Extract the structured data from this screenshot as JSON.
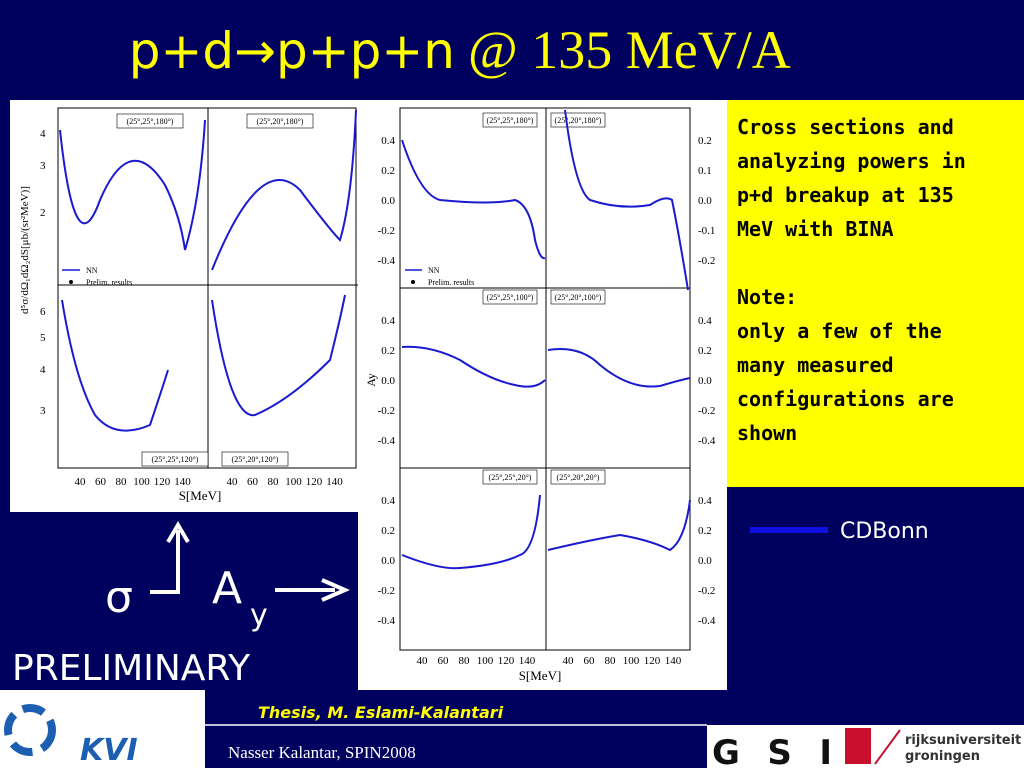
{
  "title": {
    "main": "p+d→p+p+n",
    "sub": "@ 135 MeV/A"
  },
  "left_plot": {
    "y_label": "d⁵σ/dΩ₁dΩ₂dS[μb/(sr²MeV)]",
    "x_label": "S[MeV]",
    "legend": [
      "NN",
      "Prelim. results"
    ],
    "panels": [
      "(25°,25°,180°)",
      "(25°,20°,180°)",
      "(25°,25°,120°)",
      "(25°,20°,120°)"
    ],
    "yticks_top": [
      "4",
      "3",
      "2"
    ],
    "yticks_bottom": [
      "6",
      "5",
      "4",
      "3"
    ],
    "xticks": [
      "40",
      "60",
      "80",
      "100",
      "120",
      "140"
    ]
  },
  "right_plot": {
    "y_label": "Ay",
    "x_label": "S[MeV]",
    "legend": [
      "NN",
      "Prelim. results"
    ],
    "panels": [
      "(25°,25°,180°)",
      "(25°,20°,180°)",
      "(25°,25°,100°)",
      "(25°,20°,100°)",
      "(25°,25°,20°)",
      "(25°,20°,20°)"
    ],
    "yticks": [
      "0.4",
      "0.2",
      "0.0",
      "-0.2",
      "-0.4"
    ],
    "yticks_right_top": [
      "0.2",
      "0.1",
      "0.0",
      "-0.1",
      "-0.2"
    ],
    "xticks": [
      "40",
      "60",
      "80",
      "100",
      "120",
      "140"
    ]
  },
  "note_box": {
    "lines": [
      "Cross sections and",
      "analyzing powers in",
      "p+d breakup at 135",
      "MeV with BINA",
      "",
      "Note:",
      "only a few of the",
      "many measured",
      "configurations are",
      "shown"
    ]
  },
  "legend": "CDBonn",
  "arrows": {
    "sigma": "σ",
    "ay": "A",
    "ay_sub": "y"
  },
  "preliminary": "PRELIMINARY",
  "footer": {
    "thesis": "Thesis, M. Eslami-Kalantari",
    "credit": "Nasser Kalantar, SPIN2008",
    "kvi": "KVI",
    "gsi": "GSI",
    "rug": [
      "rijksuniversiteit",
      "groningen"
    ]
  }
}
